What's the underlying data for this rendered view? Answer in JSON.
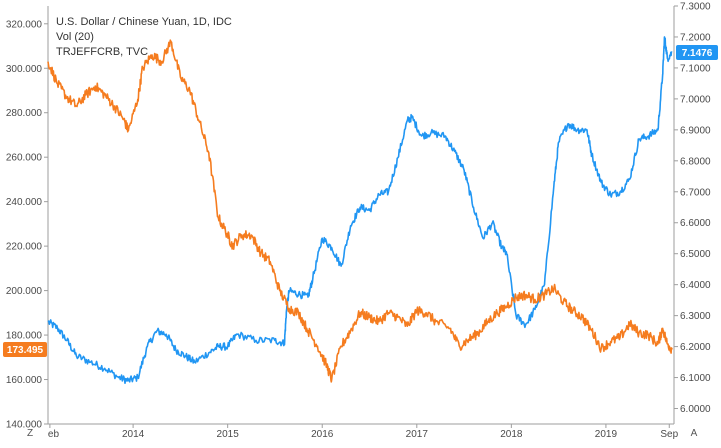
{
  "legend": {
    "line1": "U.S. Dollar / Chinese Yuan, 1D, IDC",
    "line2": "Vol (20)",
    "line3": "TRJEFFCRB, TVC"
  },
  "corner": {
    "left": "Z",
    "right": "A"
  },
  "chart_data": {
    "type": "line",
    "x_tick_labels": [
      "eb",
      "2014",
      "2015",
      "2016",
      "2017",
      "2018",
      "2019",
      "Sep"
    ],
    "x_tick_years": [
      2013.12,
      2014.0,
      2015.0,
      2016.0,
      2017.0,
      2018.0,
      2019.0,
      2019.67
    ],
    "xlim": [
      2013.1,
      2019.72
    ],
    "left_axis": {
      "ylim": [
        140,
        328
      ],
      "ticks": [
        140,
        160,
        180,
        200,
        220,
        240,
        260,
        280,
        300,
        320
      ],
      "tick_labels": [
        "140.000",
        "160.000",
        "180.000",
        "200.000",
        "220.000",
        "240.000",
        "260.000",
        "280.000",
        "300.000",
        "320.000"
      ]
    },
    "right_axis": {
      "ylim": [
        5.95,
        7.3
      ],
      "ticks": [
        6.0,
        6.1,
        6.2,
        6.3,
        6.4,
        6.5,
        6.6,
        6.7,
        6.8,
        6.9,
        7.0,
        7.1,
        7.2,
        7.3
      ],
      "tick_labels": [
        "6.0000",
        "6.1000",
        "6.2000",
        "6.3000",
        "6.4000",
        "6.5000",
        "6.6000",
        "6.7000",
        "6.8000",
        "6.9000",
        "7.0000",
        "7.1000",
        "7.2000",
        "7.3000"
      ]
    },
    "last_value_labels": {
      "left": "173.495",
      "right": "7.1476"
    },
    "grid": false,
    "series": [
      {
        "axis": "right",
        "color": "#2196f3",
        "x": [
          2013.1,
          2013.2,
          2013.3,
          2013.4,
          2013.55,
          2013.7,
          2013.85,
          2013.95,
          2014.05,
          2014.15,
          2014.25,
          2014.35,
          2014.45,
          2014.55,
          2014.65,
          2014.8,
          2014.9,
          2015.0,
          2015.1,
          2015.3,
          2015.5,
          2015.6,
          2015.62,
          2015.65,
          2015.75,
          2015.85,
          2015.9,
          2016.0,
          2016.1,
          2016.2,
          2016.3,
          2016.4,
          2016.5,
          2016.6,
          2016.7,
          2016.8,
          2016.9,
          2016.95,
          2017.05,
          2017.15,
          2017.3,
          2017.4,
          2017.5,
          2017.6,
          2017.7,
          2017.8,
          2017.9,
          2017.95,
          2018.05,
          2018.15,
          2018.25,
          2018.35,
          2018.45,
          2018.5,
          2018.6,
          2018.7,
          2018.8,
          2018.85,
          2018.95,
          2019.05,
          2019.15,
          2019.25,
          2019.35,
          2019.45,
          2019.55,
          2019.6,
          2019.62,
          2019.65,
          2019.7
        ],
        "values": [
          6.28,
          6.26,
          6.22,
          6.17,
          6.15,
          6.13,
          6.1,
          6.09,
          6.1,
          6.2,
          6.25,
          6.24,
          6.19,
          6.17,
          6.15,
          6.18,
          6.2,
          6.2,
          6.24,
          6.22,
          6.22,
          6.21,
          6.31,
          6.38,
          6.37,
          6.36,
          6.42,
          6.55,
          6.52,
          6.46,
          6.59,
          6.65,
          6.64,
          6.69,
          6.7,
          6.81,
          6.93,
          6.94,
          6.88,
          6.89,
          6.88,
          6.83,
          6.77,
          6.65,
          6.55,
          6.6,
          6.52,
          6.5,
          6.3,
          6.27,
          6.32,
          6.4,
          6.72,
          6.86,
          6.92,
          6.9,
          6.9,
          6.82,
          6.73,
          6.69,
          6.7,
          6.74,
          6.87,
          6.88,
          6.9,
          7.08,
          7.2,
          7.13,
          7.15
        ]
      },
      {
        "axis": "left",
        "color": "#f57c1f",
        "x": [
          2013.1,
          2013.2,
          2013.3,
          2013.4,
          2013.5,
          2013.6,
          2013.7,
          2013.8,
          2013.9,
          2013.95,
          2014.05,
          2014.1,
          2014.2,
          2014.3,
          2014.4,
          2014.5,
          2014.6,
          2014.7,
          2014.8,
          2014.9,
          2015.0,
          2015.05,
          2015.15,
          2015.25,
          2015.35,
          2015.45,
          2015.55,
          2015.65,
          2015.75,
          2015.85,
          2015.95,
          2016.05,
          2016.1,
          2016.2,
          2016.3,
          2016.4,
          2016.5,
          2016.6,
          2016.7,
          2016.8,
          2016.9,
          2017.0,
          2017.1,
          2017.2,
          2017.35,
          2017.45,
          2017.55,
          2017.65,
          2017.75,
          2017.85,
          2017.95,
          2018.05,
          2018.15,
          2018.25,
          2018.35,
          2018.45,
          2018.55,
          2018.65,
          2018.75,
          2018.85,
          2018.95,
          2019.05,
          2019.15,
          2019.25,
          2019.35,
          2019.45,
          2019.55,
          2019.6,
          2019.65,
          2019.7
        ],
        "values": [
          303,
          293,
          287,
          283,
          288,
          292,
          288,
          283,
          277,
          272,
          286,
          300,
          306,
          303,
          312,
          296,
          290,
          276,
          262,
          233,
          225,
          220,
          225,
          225,
          217,
          213,
          200,
          192,
          190,
          182,
          175,
          166,
          160,
          175,
          182,
          190,
          188,
          186,
          190,
          188,
          184,
          191,
          190,
          186,
          183,
          175,
          178,
          181,
          186,
          190,
          193,
          197,
          198,
          196,
          198,
          201,
          195,
          191,
          188,
          182,
          174,
          177,
          179,
          185,
          181,
          180,
          176,
          183,
          176,
          173.5
        ]
      }
    ]
  }
}
